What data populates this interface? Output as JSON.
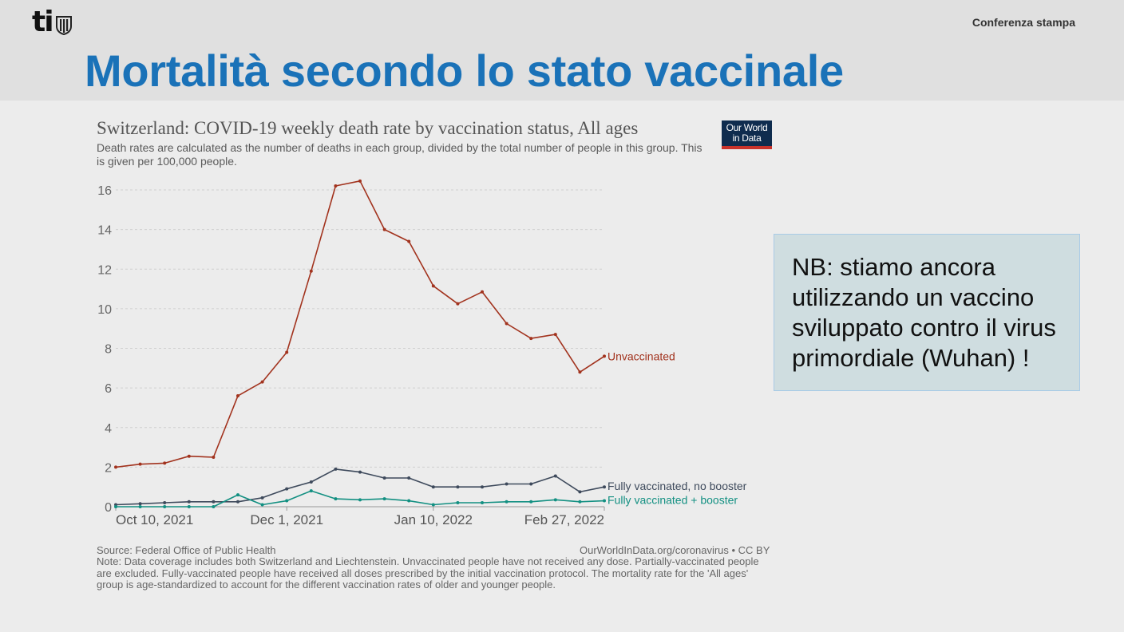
{
  "header": {
    "logo_text": "ti",
    "top_right": "Conferenza stampa",
    "slide_title": "Mortalità secondo lo stato vaccinale"
  },
  "chart_data": {
    "type": "line",
    "title": "Switzerland: COVID-19 weekly death rate by vaccination status, All ages",
    "subtitle": "Death rates are calculated as the number of deaths in each group, divided by the total number of people in this group. This is given per 100,000 people.",
    "ylim": [
      0,
      16
    ],
    "y_ticks": [
      0,
      2,
      4,
      6,
      8,
      10,
      12,
      14,
      16
    ],
    "x_tick_labels": [
      "Oct 10, 2021",
      "Dec 1, 2021",
      "Jan 10, 2022",
      "Feb 27, 2022"
    ],
    "grid": true,
    "legend": "end-of-line labels",
    "series": [
      {
        "name": "Unvaccinated",
        "color": "#a2331e",
        "values": [
          2.0,
          2.15,
          2.2,
          2.55,
          2.5,
          5.6,
          6.3,
          7.8,
          11.9,
          16.2,
          16.45,
          14.0,
          13.4,
          11.15,
          10.25,
          10.85,
          9.25,
          8.5,
          8.7,
          6.8,
          7.6
        ]
      },
      {
        "name": "Fully vaccinated, no booster",
        "color": "#3e4a5c",
        "values": [
          0.1,
          0.15,
          0.2,
          0.25,
          0.25,
          0.25,
          0.45,
          0.9,
          1.25,
          1.9,
          1.75,
          1.45,
          1.45,
          1.0,
          1.0,
          1.0,
          1.15,
          1.15,
          1.55,
          0.75,
          1.0
        ]
      },
      {
        "name": "Fully vaccinated + booster",
        "color": "#139082",
        "values": [
          0.0,
          0.0,
          0.0,
          0.0,
          0.0,
          0.6,
          0.1,
          0.3,
          0.8,
          0.4,
          0.35,
          0.4,
          0.3,
          0.1,
          0.2,
          0.2,
          0.25,
          0.25,
          0.35,
          0.25,
          0.3
        ]
      }
    ]
  },
  "brand_badge": {
    "line1": "Our World",
    "line2": "in Data",
    "bg_color": "#0f2c4e",
    "accent_color": "#c9332b"
  },
  "footer": {
    "source": "Source: Federal Office of Public Health",
    "link": "OurWorldInData.org/coronavirus • CC BY",
    "note": "Note: Data coverage includes both Switzerland and Liechtenstein. Unvaccinated people have not received any dose. Partially-vaccinated people are excluded. Fully-vaccinated people have received all doses prescribed by the initial vaccination protocol. The mortality rate for the 'All ages' group is age-standardized to account for the different vaccination rates of older and younger people."
  },
  "callout": {
    "text": "NB: stiamo ancora utilizzando un vaccino sviluppato contro il virus primordiale (Wuhan) !"
  },
  "colors": {
    "title_blue": "#1a72b8",
    "callout_bg": "#cfdde0"
  }
}
